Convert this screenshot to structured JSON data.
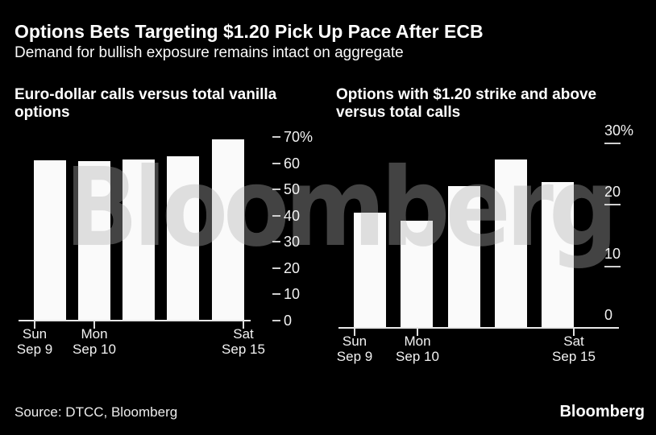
{
  "header": {
    "title": "Options Bets Targeting $1.20 Pick Up Pace After ECB",
    "subtitle": "Demand for bullish exposure remains intact on aggregate"
  },
  "watermark": "Bloomberg",
  "footer": {
    "source": "Source: DTCC, Bloomberg",
    "logo": "Bloomberg"
  },
  "colors": {
    "background": "#000000",
    "bar": "#fafafa",
    "title_text": "#ffffff",
    "tick_text": "#f2f2f2",
    "axis_line": "#e8e8e8",
    "watermark": "rgba(175,175,175,0.38)"
  },
  "chart_data": [
    {
      "type": "bar",
      "title": "Euro-dollar calls versus total vanilla options",
      "categories": [
        "Sun Sep 9",
        "Mon Sep 10",
        "",
        "",
        "Sat Sep 15"
      ],
      "values": [
        61,
        60.8,
        61.5,
        62.5,
        69
      ],
      "unit": "%",
      "ylim": [
        0,
        70
      ],
      "yticks": [
        0,
        10,
        20,
        30,
        40,
        50,
        60,
        70
      ],
      "ytick_labels": [
        "0",
        "10",
        "20",
        "30",
        "40",
        "50",
        "60",
        "70%"
      ],
      "x_tick_labels": [
        {
          "day": "Sun",
          "date": "Sep 9"
        },
        {
          "day": "Mon",
          "date": "Sep 10"
        },
        {
          "day": "Sat",
          "date": "Sep 15"
        }
      ],
      "x_tick_bar_index": [
        0,
        1,
        4
      ],
      "legend": "none",
      "grid": "off"
    },
    {
      "type": "bar",
      "title": "Options with $1.20 strike and above versus total calls",
      "categories": [
        "Sun Sep 9",
        "Mon Sep 10",
        "",
        "",
        "Sat Sep 15"
      ],
      "values": [
        18.7,
        17.4,
        23,
        27.4,
        23.7
      ],
      "unit": "%",
      "ylim": [
        0,
        30
      ],
      "yticks": [
        0,
        10,
        20,
        30
      ],
      "ytick_labels": [
        "0",
        "10",
        "20",
        "30%"
      ],
      "x_tick_labels": [
        {
          "day": "Sun",
          "date": "Sep 9"
        },
        {
          "day": "Mon",
          "date": "Sep 10"
        },
        {
          "day": "Sat",
          "date": "Sep 15"
        }
      ],
      "x_tick_bar_index": [
        0,
        1,
        4
      ],
      "legend": "none",
      "grid": "off"
    }
  ]
}
